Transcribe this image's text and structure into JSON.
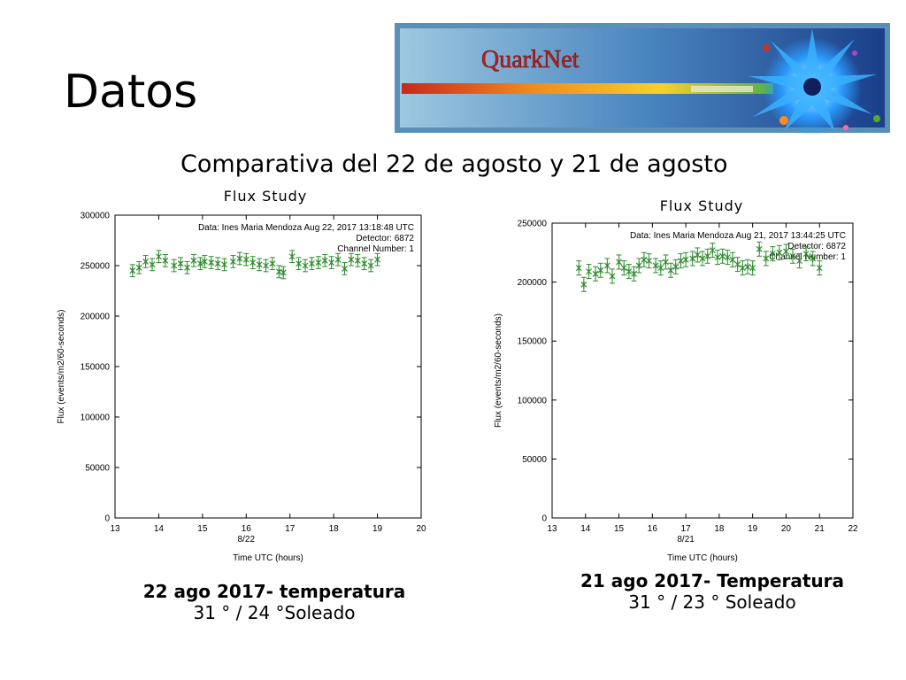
{
  "slide": {
    "title": "Datos",
    "subtitle": "Comparativa del 22 de agosto y 21 de agosto",
    "logo_text": "QuarkNet"
  },
  "captions": [
    {
      "line1": "22 ago 2017- temperatura",
      "line2": "31 ° / 24 °Soleado"
    },
    {
      "line1": "21 ago 2017- Temperatura",
      "line2": "31 ° / 23 ° Soleado"
    }
  ],
  "chart_data": [
    {
      "type": "scatter",
      "title": "Flux Study",
      "xlabel": "Time UTC (hours)",
      "ylabel": "Flux (events/m2/60-seconds)",
      "xlim": [
        13,
        20
      ],
      "ylim": [
        0,
        300000
      ],
      "x_ticks": [
        13,
        14,
        15,
        16,
        17,
        18,
        19,
        20
      ],
      "y_ticks": [
        0,
        50000,
        100000,
        150000,
        200000,
        250000,
        300000
      ],
      "date_label": "8/22",
      "date_label_at": 16,
      "info": [
        "Data: Ines Maria Mendoza  Aug 22, 2017 13:18:48 UTC",
        "Detector: 6872",
        "Channel Number: 1"
      ],
      "series": [
        {
          "color": "#2e8b2e",
          "error": 6000,
          "x": [
            13.4,
            13.55,
            13.7,
            13.85,
            14.0,
            14.15,
            14.35,
            14.5,
            14.65,
            14.8,
            14.95,
            15.05,
            15.2,
            15.35,
            15.5,
            15.7,
            15.85,
            16.0,
            16.15,
            16.3,
            16.45,
            16.6,
            16.75,
            16.85,
            17.05,
            17.2,
            17.35,
            17.5,
            17.65,
            17.8,
            17.95,
            18.1,
            18.25,
            18.4,
            18.55,
            18.7,
            18.85,
            19.0
          ],
          "y": [
            245000,
            248000,
            254000,
            251000,
            259000,
            255000,
            250000,
            252000,
            248000,
            255000,
            252000,
            254000,
            253000,
            252000,
            251000,
            254000,
            257000,
            256000,
            253000,
            251000,
            250000,
            252000,
            244000,
            243000,
            259000,
            252000,
            250000,
            252000,
            253000,
            255000,
            253000,
            256000,
            247000,
            256000,
            255000,
            252000,
            250000,
            256000
          ]
        }
      ]
    },
    {
      "type": "scatter",
      "title": "Flux Study",
      "xlabel": "Time UTC (hours)",
      "ylabel": "Flux (events/m2/60-seconds)",
      "xlim": [
        13,
        22
      ],
      "ylim": [
        0,
        250000
      ],
      "x_ticks": [
        13,
        14,
        15,
        16,
        17,
        18,
        19,
        20,
        21,
        22
      ],
      "y_ticks": [
        0,
        50000,
        100000,
        150000,
        200000,
        250000
      ],
      "date_label": "8/21",
      "date_label_at": 17,
      "info": [
        "Data: Ines Maria Mendoza  Aug 21, 2017 13:44:25 UTC",
        "Detector: 6872",
        "Channel Number: 1"
      ],
      "series": [
        {
          "color": "#2e8b2e",
          "error": 6000,
          "x": [
            13.8,
            13.95,
            14.1,
            14.3,
            14.45,
            14.65,
            14.8,
            15.0,
            15.15,
            15.3,
            15.45,
            15.6,
            15.75,
            15.9,
            16.1,
            16.25,
            16.4,
            16.55,
            16.7,
            16.85,
            17.0,
            17.2,
            17.35,
            17.5,
            17.65,
            17.8,
            17.95,
            18.1,
            18.25,
            18.4,
            18.55,
            18.7,
            18.85,
            19.0,
            19.2,
            19.4,
            19.6,
            19.8,
            20.0,
            20.2,
            20.4,
            20.6,
            20.8,
            21.0
          ],
          "y": [
            212000,
            198000,
            209000,
            207000,
            210000,
            214000,
            205000,
            217000,
            212000,
            209000,
            207000,
            214000,
            219000,
            218000,
            214000,
            212000,
            217000,
            210000,
            213000,
            218000,
            219000,
            220000,
            223000,
            220000,
            222000,
            227000,
            221000,
            222000,
            221000,
            219000,
            215000,
            212000,
            213000,
            212000,
            228000,
            220000,
            224000,
            225000,
            226000,
            222000,
            218000,
            224000,
            220000,
            212000
          ]
        }
      ]
    }
  ]
}
